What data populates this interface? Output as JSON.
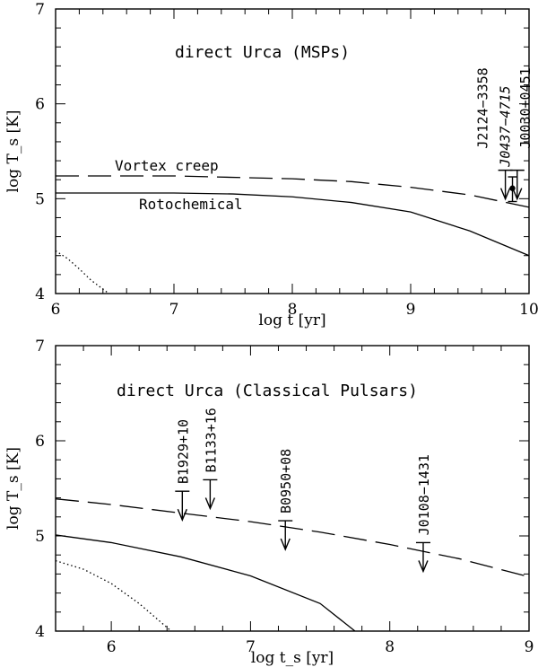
{
  "chart_data": [
    {
      "type": "line",
      "title": "direct Urca  (MSPs)",
      "xlabel": "log t  [yr]",
      "ylabel": "log T_s [K]",
      "xlim": [
        6,
        10
      ],
      "ylim": [
        4,
        7
      ],
      "xticks": [
        6,
        7,
        8,
        9,
        10
      ],
      "yticks": [
        4,
        5,
        6,
        7
      ],
      "grid": false,
      "series": [
        {
          "name": "Vortex creep",
          "style": "dashed",
          "x": [
            6.0,
            7.0,
            8.0,
            8.5,
            9.0,
            9.5,
            10.0
          ],
          "y": [
            5.24,
            5.24,
            5.21,
            5.18,
            5.12,
            5.04,
            4.91
          ]
        },
        {
          "name": "Rotochemical",
          "style": "solid",
          "x": [
            6.0,
            7.0,
            7.5,
            8.0,
            8.5,
            9.0,
            9.5,
            10.0
          ],
          "y": [
            5.06,
            5.06,
            5.05,
            5.02,
            4.96,
            4.86,
            4.66,
            4.4
          ]
        },
        {
          "style": "dotted",
          "x": [
            6.0,
            6.1,
            6.2,
            6.3,
            6.45
          ],
          "y": [
            4.45,
            4.37,
            4.26,
            4.14,
            4.0
          ]
        }
      ],
      "observations": [
        {
          "label": "J2124−3358",
          "italic": false,
          "x": 9.8,
          "y": 5.3,
          "upper_limit": true
        },
        {
          "label": "J0437−4715",
          "italic": true,
          "x": 9.86,
          "y": 5.11,
          "upper_limit": false,
          "yerr": [
            4.97,
            5.23
          ]
        },
        {
          "label": "J0030+0451",
          "italic": false,
          "x": 9.9,
          "y": 5.3,
          "upper_limit": true
        }
      ]
    },
    {
      "type": "line",
      "title": "direct Urca  (Classical Pulsars)",
      "xlabel": "log t_s  [yr]",
      "ylabel": "log T_s [K]",
      "xlim": [
        5.6,
        9
      ],
      "ylim": [
        4,
        7
      ],
      "xticks": [
        6,
        7,
        8,
        9
      ],
      "yticks": [
        4,
        5,
        6,
        7
      ],
      "grid": false,
      "series": [
        {
          "style": "dashed",
          "x": [
            5.6,
            6.0,
            6.5,
            7.0,
            7.5,
            8.0,
            8.5,
            9.0
          ],
          "y": [
            5.39,
            5.33,
            5.24,
            5.15,
            5.04,
            4.91,
            4.76,
            4.57
          ]
        },
        {
          "style": "solid",
          "x": [
            5.6,
            6.0,
            6.5,
            7.0,
            7.5,
            7.75
          ],
          "y": [
            5.01,
            4.93,
            4.78,
            4.58,
            4.29,
            4.0
          ]
        },
        {
          "style": "dotted",
          "x": [
            5.6,
            5.8,
            6.0,
            6.2,
            6.43
          ],
          "y": [
            4.74,
            4.65,
            4.5,
            4.29,
            4.0
          ]
        }
      ],
      "observations": [
        {
          "label": "B1929+10",
          "italic": false,
          "x": 6.51,
          "y": 5.47,
          "upper_limit": true
        },
        {
          "label": "B1133+16",
          "italic": false,
          "x": 6.71,
          "y": 5.59,
          "upper_limit": true
        },
        {
          "label": "B0950+08",
          "italic": false,
          "x": 7.25,
          "y": 5.16,
          "upper_limit": true
        },
        {
          "label": "J0108−1431",
          "italic": false,
          "x": 8.24,
          "y": 4.93,
          "upper_limit": true
        }
      ]
    }
  ]
}
